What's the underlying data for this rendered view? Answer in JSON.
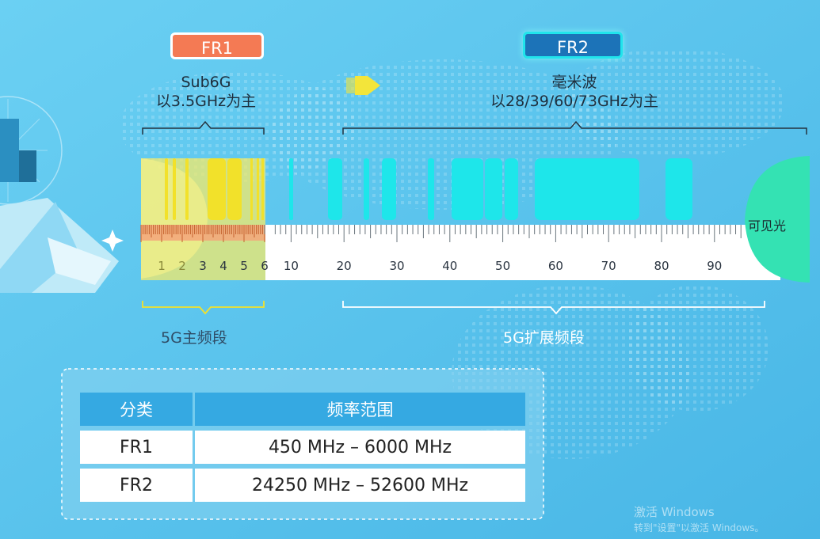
{
  "fr1": {
    "badge": "FR1",
    "caption_line1": "Sub6G",
    "caption_line2": "以3.5GHz为主",
    "band_label": "5G主频段",
    "badge_color": "#f47a54"
  },
  "fr2": {
    "badge": "FR2",
    "caption_line1": "毫米波",
    "caption_line2": "以28/39/60/73GHz为主",
    "band_label": "5G扩展频段",
    "badge_color": "#1c73b8"
  },
  "visible_light_label": "可见光",
  "ruler_ticks": [
    "1",
    "2",
    "3",
    "4",
    "5",
    "6",
    "10",
    "20",
    "30",
    "40",
    "50",
    "60",
    "70",
    "80",
    "90"
  ],
  "table": {
    "headers": [
      "分类",
      "频率范围"
    ],
    "rows": [
      [
        "FR1",
        "450 MHz – 6000 MHz"
      ],
      [
        "FR2",
        "24250 MHz – 52600 MHz"
      ]
    ]
  },
  "watermark": {
    "line1": "激活 Windows",
    "line2": "转到\"设置\"以激活 Windows。"
  },
  "colors": {
    "background": "#5cc6ee",
    "fr1_bars": "#f2e12a",
    "fr2_bars": "#1ee6ea",
    "visible_light": "#34e2b3",
    "table_header": "#35a9e2"
  }
}
